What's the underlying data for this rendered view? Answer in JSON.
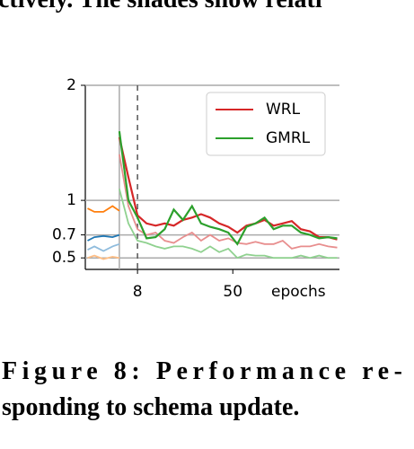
{
  "top_text": "ctively. The shades show relati",
  "caption": [
    "Figure 8: Performance re-",
    "sponding to schema update."
  ],
  "chart_data": {
    "type": "line",
    "xlabel": "epochs",
    "xlim": [
      -15,
      97
    ],
    "xticks": [
      8,
      50
    ],
    "ylim": [
      0.4,
      2.0
    ],
    "yticks": [
      0.5,
      0.7,
      1,
      2
    ],
    "grid": true,
    "vlines": [
      {
        "x": 0,
        "style": "solid"
      },
      {
        "x": 8,
        "style": "dashed"
      }
    ],
    "legend": "upper right",
    "series": [
      {
        "color": "#ffbf87",
        "x": [
          -14,
          -11,
          -7,
          -3,
          0
        ],
        "values": [
          0.5,
          0.52,
          0.49,
          0.51,
          0.5
        ]
      },
      {
        "color": "#8fbcdd",
        "x": [
          -14,
          -11,
          -7,
          -3,
          0
        ],
        "values": [
          0.57,
          0.6,
          0.56,
          0.6,
          0.62
        ]
      },
      {
        "color": "#1f77b4",
        "x": [
          -14,
          -11,
          -7,
          -3,
          0
        ],
        "values": [
          0.65,
          0.68,
          0.69,
          0.68,
          0.7
        ]
      },
      {
        "color": "#ff7f0e",
        "x": [
          -14,
          -11,
          -7,
          -3,
          0
        ],
        "values": [
          0.93,
          0.9,
          0.9,
          0.95,
          0.91
        ]
      },
      {
        "color": "#e88e8e",
        "x": [
          0,
          4,
          8,
          12,
          16,
          20,
          24,
          28,
          32,
          36,
          40,
          44,
          48,
          52,
          56,
          60,
          64,
          68,
          72,
          76,
          80,
          84,
          88,
          92,
          96
        ],
        "values": [
          1.4,
          0.95,
          0.75,
          0.7,
          0.72,
          0.65,
          0.63,
          0.68,
          0.72,
          0.65,
          0.7,
          0.65,
          0.67,
          0.63,
          0.62,
          0.64,
          0.62,
          0.62,
          0.65,
          0.58,
          0.6,
          0.6,
          0.62,
          0.6,
          0.59
        ]
      },
      {
        "color": "#8fd18f",
        "x": [
          0,
          4,
          8,
          12,
          16,
          20,
          24,
          28,
          32,
          36,
          40,
          44,
          48,
          52,
          56,
          60,
          64,
          68,
          72,
          76,
          80,
          84,
          88,
          92,
          96
        ],
        "values": [
          1.1,
          0.8,
          0.65,
          0.63,
          0.6,
          0.58,
          0.6,
          0.6,
          0.58,
          0.55,
          0.6,
          0.55,
          0.58,
          0.5,
          0.53,
          0.52,
          0.52,
          0.5,
          0.5,
          0.5,
          0.52,
          0.5,
          0.52,
          0.5,
          0.5
        ]
      },
      {
        "name": "WRL",
        "color": "#d62728",
        "x": [
          0,
          4,
          8,
          12,
          16,
          20,
          24,
          28,
          32,
          36,
          40,
          44,
          48,
          52,
          56,
          60,
          64,
          68,
          72,
          76,
          80,
          84,
          88,
          92,
          96
        ],
        "values": [
          1.55,
          1.2,
          0.87,
          0.8,
          0.78,
          0.8,
          0.78,
          0.83,
          0.85,
          0.88,
          0.85,
          0.8,
          0.77,
          0.72,
          0.78,
          0.8,
          0.83,
          0.78,
          0.8,
          0.82,
          0.75,
          0.73,
          0.68,
          0.68,
          0.66
        ]
      },
      {
        "name": "GMRL",
        "color": "#2ca02c",
        "x": [
          0,
          4,
          8,
          12,
          16,
          20,
          24,
          28,
          32,
          36,
          40,
          44,
          48,
          52,
          56,
          60,
          64,
          68,
          72,
          76,
          80,
          84,
          88,
          92,
          96
        ],
        "values": [
          1.6,
          1.0,
          0.85,
          0.67,
          0.68,
          0.75,
          0.92,
          0.83,
          0.95,
          0.8,
          0.77,
          0.75,
          0.72,
          0.62,
          0.77,
          0.8,
          0.85,
          0.75,
          0.78,
          0.78,
          0.72,
          0.7,
          0.67,
          0.68,
          0.67
        ]
      }
    ]
  }
}
